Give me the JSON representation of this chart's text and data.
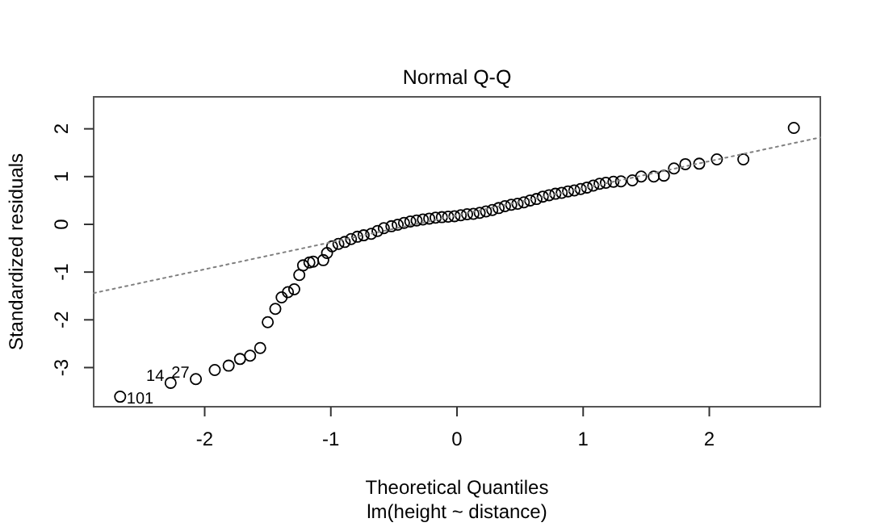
{
  "chart_data": {
    "type": "scatter",
    "title": "Normal Q-Q",
    "subtitle": "lm(height ~ distance)",
    "xlabel": "Theoretical Quantiles",
    "ylabel": "Standardized residuals",
    "xlim": [
      -2.88,
      2.88
    ],
    "ylim": [
      -3.82,
      2.67
    ],
    "xticks": [
      -2,
      -1,
      0,
      1,
      2
    ],
    "yticks": [
      -3,
      -2,
      -1,
      0,
      1,
      2
    ],
    "grid": false,
    "series": [
      {
        "marker": "circle",
        "color": "#000000",
        "x": [
          -2.67,
          -2.27,
          -2.07,
          -1.92,
          -1.81,
          -1.72,
          -1.64,
          -1.56,
          -1.5,
          -1.44,
          -1.39,
          -1.34,
          -1.29,
          -1.25,
          -1.22,
          -1.17,
          -1.14,
          -1.06,
          -1.03,
          -0.99,
          -0.94,
          -0.89,
          -0.84,
          -0.79,
          -0.74,
          -0.68,
          -0.63,
          -0.58,
          -0.52,
          -0.47,
          -0.42,
          -0.37,
          -0.32,
          -0.27,
          -0.22,
          -0.17,
          -0.12,
          -0.07,
          -0.02,
          0.03,
          0.08,
          0.13,
          0.18,
          0.23,
          0.28,
          0.33,
          0.38,
          0.43,
          0.48,
          0.53,
          0.58,
          0.63,
          0.68,
          0.73,
          0.78,
          0.83,
          0.88,
          0.93,
          0.98,
          1.03,
          1.08,
          1.13,
          1.18,
          1.24,
          1.3,
          1.39,
          1.46,
          1.56,
          1.64,
          1.72,
          1.81,
          1.92,
          2.06,
          2.27,
          2.67
        ],
        "values": [
          -3.61,
          -3.32,
          -3.24,
          -3.05,
          -2.96,
          -2.82,
          -2.75,
          -2.59,
          -2.05,
          -1.77,
          -1.53,
          -1.42,
          -1.36,
          -1.06,
          -0.86,
          -0.8,
          -0.78,
          -0.75,
          -0.6,
          -0.46,
          -0.41,
          -0.37,
          -0.31,
          -0.26,
          -0.23,
          -0.2,
          -0.14,
          -0.08,
          -0.04,
          -0.01,
          0.03,
          0.06,
          0.08,
          0.1,
          0.12,
          0.14,
          0.15,
          0.16,
          0.17,
          0.19,
          0.21,
          0.22,
          0.24,
          0.27,
          0.3,
          0.34,
          0.38,
          0.41,
          0.43,
          0.46,
          0.5,
          0.53,
          0.58,
          0.61,
          0.64,
          0.66,
          0.69,
          0.71,
          0.74,
          0.77,
          0.81,
          0.85,
          0.87,
          0.89,
          0.9,
          0.92,
          1.0,
          1.0,
          1.02,
          1.17,
          1.26,
          1.27,
          1.36,
          1.36,
          2.02
        ]
      },
      {
        "type": "line",
        "color": "#808080",
        "line_style": "dotted",
        "x": [
          -2.88,
          2.88
        ],
        "values": [
          -1.44,
          1.82
        ]
      }
    ],
    "annotations": [
      {
        "text": "101",
        "x": -2.67,
        "y": -3.61
      },
      {
        "text": "14",
        "x": -2.27,
        "y": -3.32
      },
      {
        "text": "27",
        "x": -2.07,
        "y": -3.24
      }
    ]
  }
}
